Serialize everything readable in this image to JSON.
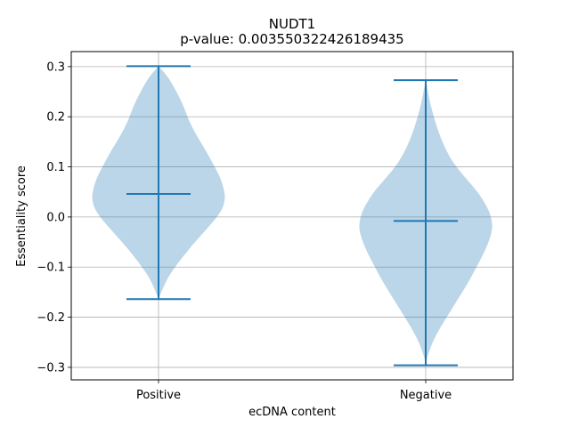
{
  "chart_data": {
    "type": "violin",
    "title": "NUDT1",
    "subtitle": "p-value: 0.003550322426189435",
    "xlabel": "ecDNA content",
    "ylabel": "Essentiality score",
    "categories": [
      "Positive",
      "Negative"
    ],
    "ylim": [
      -0.325,
      0.33
    ],
    "yticks": [
      0.3,
      0.2,
      0.1,
      0.0,
      -0.1,
      -0.2,
      -0.3
    ],
    "ytick_labels": [
      "0.3",
      "0.2",
      "0.1",
      "0.0",
      "−0.1",
      "−0.2",
      "−0.3"
    ],
    "grid": true,
    "series": [
      {
        "max": 0.301,
        "mean": 0.046,
        "min": -0.164,
        "density": [
          [
            -0.164,
            0.0
          ],
          [
            -0.15,
            0.04
          ],
          [
            -0.12,
            0.14
          ],
          [
            -0.09,
            0.3
          ],
          [
            -0.06,
            0.48
          ],
          [
            -0.03,
            0.68
          ],
          [
            0.0,
            0.88
          ],
          [
            0.02,
            0.97
          ],
          [
            0.04,
            1.0
          ],
          [
            0.06,
            0.97
          ],
          [
            0.08,
            0.92
          ],
          [
            0.1,
            0.84
          ],
          [
            0.13,
            0.72
          ],
          [
            0.16,
            0.58
          ],
          [
            0.19,
            0.46
          ],
          [
            0.22,
            0.38
          ],
          [
            0.25,
            0.27
          ],
          [
            0.28,
            0.14
          ],
          [
            0.301,
            0.0
          ]
        ]
      },
      {
        "max": 0.273,
        "mean": -0.008,
        "min": -0.296,
        "density": [
          [
            -0.296,
            0.0
          ],
          [
            -0.28,
            0.02
          ],
          [
            -0.25,
            0.1
          ],
          [
            -0.22,
            0.22
          ],
          [
            -0.19,
            0.36
          ],
          [
            -0.16,
            0.5
          ],
          [
            -0.13,
            0.64
          ],
          [
            -0.1,
            0.76
          ],
          [
            -0.07,
            0.88
          ],
          [
            -0.04,
            0.97
          ],
          [
            -0.02,
            1.0
          ],
          [
            0.0,
            0.98
          ],
          [
            0.02,
            0.92
          ],
          [
            0.05,
            0.78
          ],
          [
            0.08,
            0.58
          ],
          [
            0.11,
            0.4
          ],
          [
            0.14,
            0.28
          ],
          [
            0.17,
            0.19
          ],
          [
            0.2,
            0.12
          ],
          [
            0.23,
            0.06
          ],
          [
            0.26,
            0.02
          ],
          [
            0.273,
            0.0
          ]
        ]
      }
    ],
    "colors": {
      "body": "#1f77b4",
      "body_opacity": 0.3,
      "lines": "#1f77b4",
      "grid": "#b0b0b0"
    }
  }
}
